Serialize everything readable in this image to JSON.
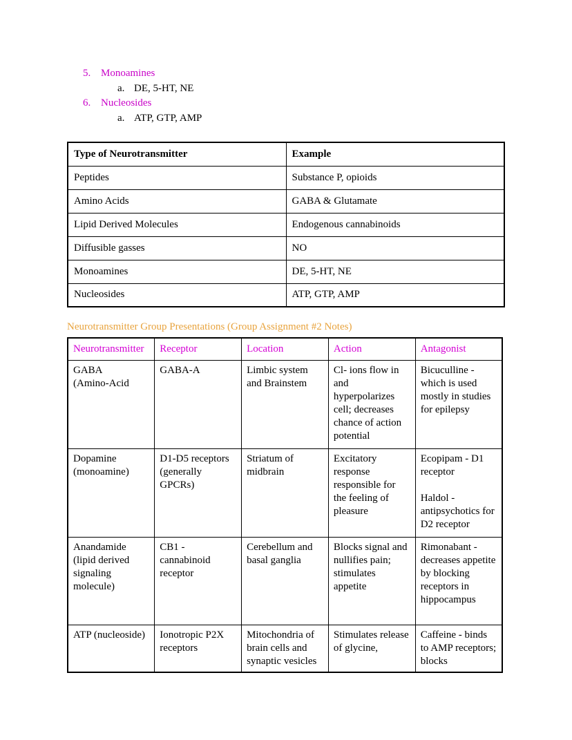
{
  "colors": {
    "accent_magenta": "#c800c8",
    "header_magenta": "#d400d4",
    "accent_orange": "#e8a33d"
  },
  "outline_list": {
    "items": [
      {
        "marker": "5.",
        "label": "Monoamines"
      },
      {
        "sub_marker": "a.",
        "sub_label": "DE, 5-HT, NE"
      },
      {
        "marker": "6.",
        "label": "Nucleosides"
      },
      {
        "sub_marker": "a.",
        "sub_label": "ATP, GTP, AMP"
      }
    ]
  },
  "type_table": {
    "headers": [
      "Type of Neurotransmitter",
      "Example"
    ],
    "rows": [
      [
        "Peptides",
        "Substance P, opioids"
      ],
      [
        "Amino Acids",
        "GABA & Glutamate"
      ],
      [
        "Lipid Derived Molecules",
        "Endogenous cannabinoids"
      ],
      [
        "Diffusible gasses",
        "NO"
      ],
      [
        "Monoamines",
        "DE, 5-HT, NE"
      ],
      [
        "Nucleosides",
        "ATP, GTP, AMP"
      ]
    ]
  },
  "section_heading": "Neurotransmitter Group Presentations (Group Assignment #2 Notes)",
  "presentation_table": {
    "headers": [
      "Neurotransmitter",
      "Receptor",
      "Location",
      "Action",
      "Antagonist"
    ],
    "rows": [
      [
        "GABA\n(Amino-Acid",
        "GABA-A",
        "Limbic system and Brainstem",
        "Cl- ions flow in and hyperpolarizes cell; decreases chance of action potential",
        "Bicuculline - which is used mostly in studies for epilepsy"
      ],
      [
        "Dopamine (monoamine)",
        "D1-D5 receptors (generally GPCRs)",
        "Striatum of midbrain",
        "Excitatory response responsible for the feeling of pleasure",
        "Ecopipam - D1 receptor\n\nHaldol - antipsychotics for D2 receptor"
      ],
      [
        "Anandamide (lipid derived signaling molecule)",
        "CB1 - cannabinoid receptor",
        "Cerebellum and basal ganglia",
        "Blocks signal and nullifies pain; stimulates appetite",
        "Rimonabant - decreases appetite by blocking receptors in hippocampus"
      ],
      [
        "ATP (nucleoside)",
        "Ionotropic P2X receptors",
        "Mitochondria of brain cells and synaptic vesicles",
        "Stimulates release of glycine,",
        "Caffeine - binds to AMP receptors; blocks"
      ]
    ]
  }
}
